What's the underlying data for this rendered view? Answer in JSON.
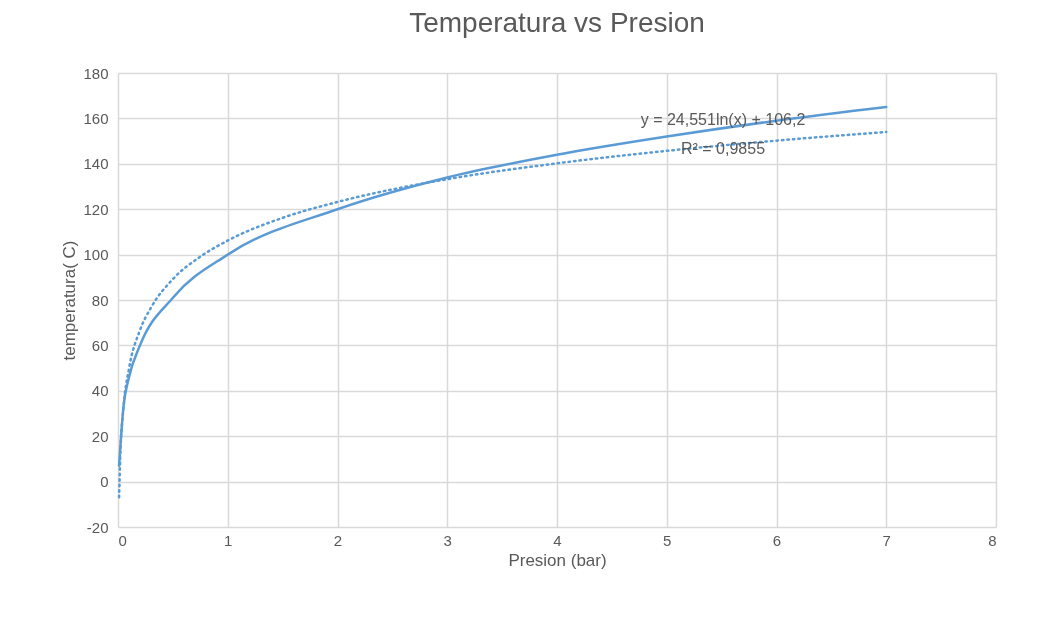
{
  "chart_data": {
    "type": "line",
    "title": "Temperatura  vs Presion",
    "xlabel": "Presion (bar)",
    "ylabel": "temperatura( C)",
    "series": [
      {
        "color": "#5b9bd5",
        "line_style": "solid",
        "x": [
          0.01,
          0.05,
          0.1,
          0.2,
          0.5,
          1,
          2,
          3,
          4,
          5,
          6,
          7
        ],
        "values": [
          7,
          33,
          46,
          60,
          81,
          100,
          120,
          134,
          144,
          152,
          159,
          165
        ]
      },
      {
        "type": "line",
        "color": "#5b9bd5",
        "line_style": "dotted",
        "x": [
          0.01,
          0.02,
          0.05,
          0.1,
          0.2,
          0.3,
          0.5,
          0.75,
          1,
          1.5,
          2,
          3,
          4,
          5,
          6,
          7
        ],
        "values": [
          -6.9,
          10.2,
          32.7,
          49.7,
          66.7,
          76.6,
          89.2,
          99.1,
          106.2,
          116.2,
          123.2,
          133.2,
          140.2,
          145.7,
          150.2,
          154
        ]
      }
    ],
    "xlim": [
      0,
      8
    ],
    "xticks": [
      0,
      1,
      2,
      3,
      4,
      5,
      6,
      7,
      8
    ],
    "ylim": [
      -20,
      180
    ],
    "yticks": [
      -20,
      0,
      20,
      40,
      60,
      80,
      100,
      120,
      140,
      160,
      180
    ],
    "grid": true,
    "marker": "none",
    "annotations": [
      "y = 24,551ln(x) + 106,2",
      "R² = 0,9855"
    ]
  }
}
